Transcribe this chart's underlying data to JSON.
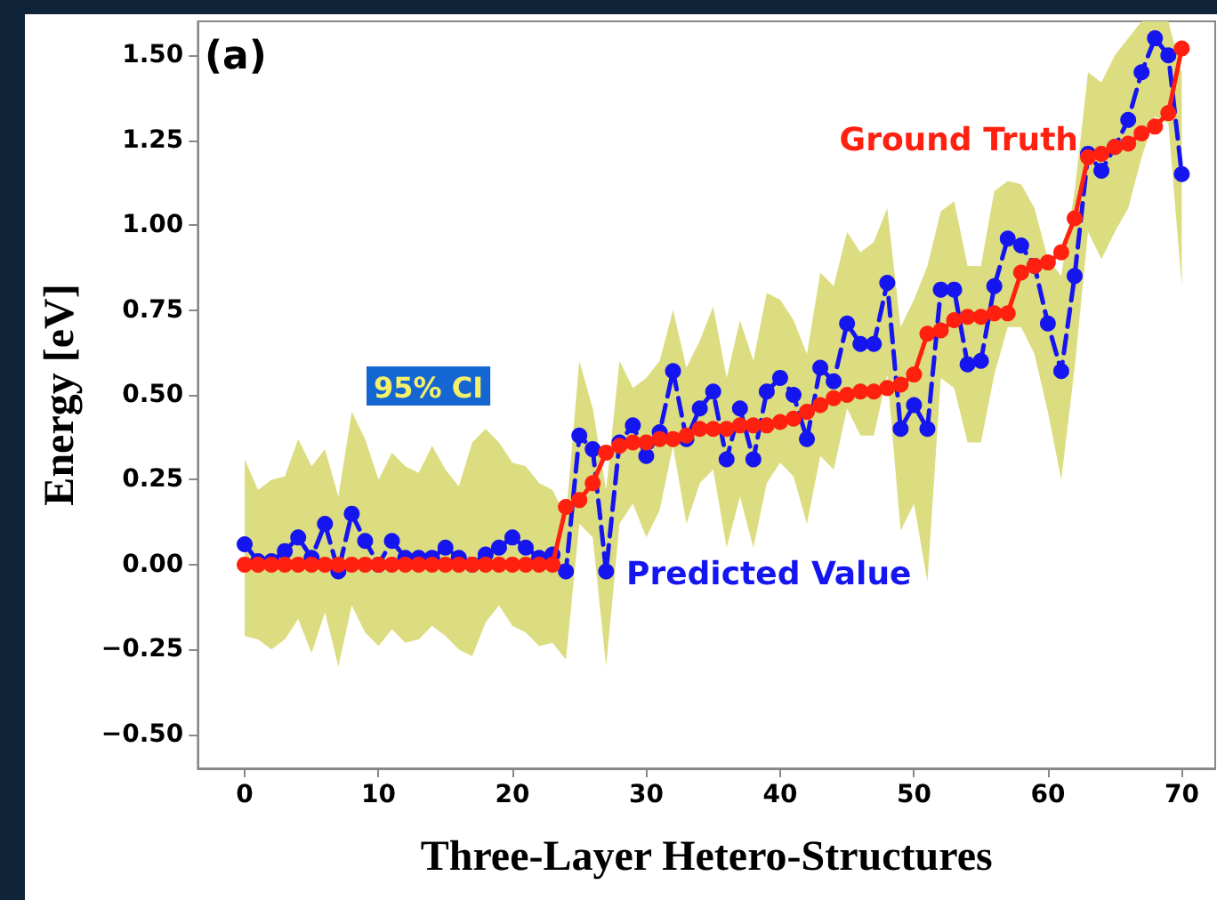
{
  "chart_data": {
    "type": "line",
    "title": "(a)",
    "xlabel": "Three-Layer Hetero-Structures",
    "ylabel": "Energy [eV]",
    "annotations": [
      "95% CI"
    ],
    "x": [
      0,
      1,
      2,
      3,
      4,
      5,
      6,
      7,
      8,
      9,
      10,
      11,
      12,
      13,
      14,
      15,
      16,
      17,
      18,
      19,
      20,
      21,
      22,
      23,
      24,
      25,
      26,
      27,
      28,
      29,
      30,
      31,
      32,
      33,
      34,
      35,
      36,
      37,
      38,
      39,
      40,
      41,
      42,
      43,
      44,
      45,
      46,
      47,
      48,
      49,
      50,
      51,
      52,
      53,
      54,
      55,
      56,
      57,
      58,
      59,
      60,
      61,
      62,
      63,
      64,
      65,
      66,
      67,
      68,
      69,
      70
    ],
    "series": [
      {
        "name": "Predicted Value",
        "color": "#1515f0",
        "line_style": "dashed",
        "values": [
          0.06,
          0.01,
          0.01,
          0.04,
          0.08,
          0.02,
          0.12,
          -0.02,
          0.15,
          0.07,
          0.0,
          0.07,
          0.02,
          0.02,
          0.02,
          0.05,
          0.02,
          0.0,
          0.03,
          0.05,
          0.08,
          0.05,
          0.02,
          0.03,
          -0.02,
          0.38,
          0.34,
          -0.02,
          0.36,
          0.41,
          0.32,
          0.39,
          0.57,
          0.37,
          0.46,
          0.51,
          0.31,
          0.46,
          0.31,
          0.51,
          0.55,
          0.5,
          0.37,
          0.58,
          0.54,
          0.71,
          0.65,
          0.65,
          0.83,
          0.4,
          0.47,
          0.4,
          0.81,
          0.81,
          0.59,
          0.6,
          0.82,
          0.96,
          0.94,
          0.88,
          0.71,
          0.57,
          0.85,
          1.21,
          1.16,
          1.23,
          1.31,
          1.45,
          1.55,
          1.5,
          1.15
        ],
        "lower": [
          -0.21,
          -0.22,
          -0.25,
          -0.22,
          -0.16,
          -0.26,
          -0.14,
          -0.3,
          -0.12,
          -0.2,
          -0.24,
          -0.19,
          -0.23,
          -0.22,
          -0.18,
          -0.21,
          -0.25,
          -0.27,
          -0.17,
          -0.12,
          -0.18,
          -0.2,
          -0.24,
          -0.23,
          -0.28,
          0.12,
          0.08,
          -0.3,
          0.12,
          0.18,
          0.08,
          0.16,
          0.35,
          0.12,
          0.24,
          0.28,
          0.05,
          0.2,
          0.05,
          0.24,
          0.3,
          0.26,
          0.12,
          0.32,
          0.28,
          0.46,
          0.38,
          0.38,
          0.56,
          0.1,
          0.18,
          -0.05,
          0.55,
          0.52,
          0.36,
          0.36,
          0.56,
          0.7,
          0.7,
          0.62,
          0.45,
          0.25,
          0.58,
          0.98,
          0.9,
          0.98,
          1.05,
          1.2,
          1.32,
          1.3,
          0.82
        ],
        "upper": [
          0.31,
          0.22,
          0.25,
          0.26,
          0.37,
          0.29,
          0.34,
          0.2,
          0.45,
          0.37,
          0.25,
          0.33,
          0.29,
          0.27,
          0.35,
          0.28,
          0.23,
          0.36,
          0.4,
          0.36,
          0.3,
          0.29,
          0.24,
          0.22,
          0.14,
          0.6,
          0.46,
          0.22,
          0.6,
          0.52,
          0.55,
          0.6,
          0.75,
          0.58,
          0.66,
          0.76,
          0.55,
          0.72,
          0.6,
          0.8,
          0.78,
          0.72,
          0.62,
          0.86,
          0.82,
          0.98,
          0.92,
          0.95,
          1.05,
          0.7,
          0.78,
          0.88,
          1.04,
          1.07,
          0.88,
          0.88,
          1.1,
          1.13,
          1.12,
          1.05,
          0.9,
          0.85,
          1.1,
          1.45,
          1.42,
          1.5,
          1.55,
          1.6,
          1.6,
          1.6,
          1.45
        ]
      },
      {
        "name": "Ground Truth",
        "color": "#ff2010",
        "line_style": "solid",
        "values": [
          0,
          0,
          0,
          0,
          0,
          0,
          0,
          0,
          0,
          0,
          0,
          0,
          0,
          0,
          0,
          0,
          0,
          0,
          0,
          0,
          0,
          0,
          0,
          0,
          0.17,
          0.19,
          0.24,
          0.33,
          0.35,
          0.36,
          0.36,
          0.37,
          0.37,
          0.38,
          0.4,
          0.4,
          0.4,
          0.41,
          0.41,
          0.41,
          0.42,
          0.43,
          0.45,
          0.47,
          0.49,
          0.5,
          0.51,
          0.51,
          0.52,
          0.53,
          0.56,
          0.68,
          0.69,
          0.72,
          0.73,
          0.73,
          0.74,
          0.74,
          0.86,
          0.88,
          0.89,
          0.92,
          1.02,
          1.2,
          1.21,
          1.23,
          1.24,
          1.27,
          1.29,
          1.33,
          1.52
        ]
      }
    ],
    "marker": "circle",
    "xlim": [
      -3.5,
      72.5
    ],
    "xticks": [
      0,
      10,
      20,
      30,
      40,
      50,
      60,
      70
    ],
    "ylim": [
      -0.6,
      1.6
    ],
    "yticks": [
      {
        "value": -0.5,
        "label": "−0.50"
      },
      {
        "value": -0.25,
        "label": "−0.25"
      },
      {
        "value": 0,
        "label": "0.00"
      },
      {
        "value": 0.25,
        "label": "0.25"
      },
      {
        "value": 0.5,
        "label": "0.50"
      },
      {
        "value": 0.75,
        "label": "0.75"
      },
      {
        "value": 1,
        "label": "1.00"
      },
      {
        "value": 1.25,
        "label": "1.25"
      },
      {
        "value": 1.5,
        "label": "1.50"
      }
    ],
    "grid": false,
    "legend": false
  }
}
